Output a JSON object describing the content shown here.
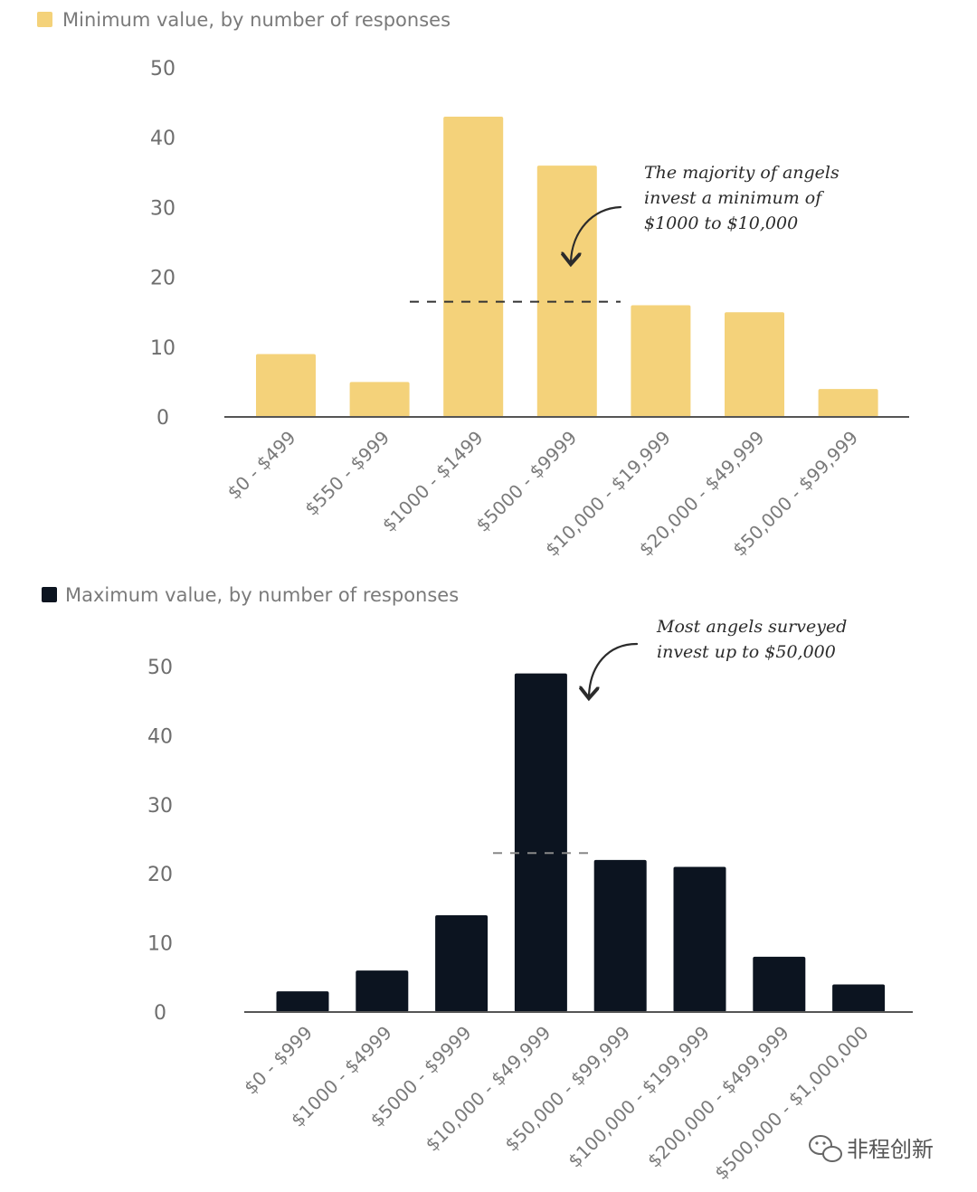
{
  "colors": {
    "min_bar": "#f4d27a",
    "max_bar": "#0c1420",
    "axis": "#555555",
    "text": "#7a7a7a"
  },
  "chart_data": [
    {
      "type": "bar",
      "legend": "Minimum value, by number of responses",
      "categories": [
        "$0 - $499",
        "$550 - $999",
        "$1000 - $1499",
        "$5000 - $9999",
        "$10,000 - $19,999",
        "$20,000 - $49,999",
        "$50,000 - $99,999"
      ],
      "values": [
        9,
        5,
        43,
        36,
        16,
        15,
        4
      ],
      "yticks": [
        0,
        10,
        20,
        30,
        40,
        50
      ],
      "ylim": [
        0,
        50
      ],
      "reference_line": 16.5,
      "annotation": [
        "The majority of angels",
        "invest a minimum of",
        "$1000 to $10,000"
      ]
    },
    {
      "type": "bar",
      "legend": "Maximum value, by number of responses",
      "categories": [
        "$0 - $999",
        "$1000 - $4999",
        "$5000 - $9999",
        "$10,000 - $49,999",
        "$50,000 - $99,999",
        "$100,000 - $199,999",
        "$200,000 - $499,999",
        "$500,000 - $1,000,000"
      ],
      "values": [
        3,
        6,
        14,
        49,
        22,
        21,
        8,
        4
      ],
      "yticks": [
        0,
        10,
        20,
        30,
        40,
        50
      ],
      "ylim": [
        0,
        50
      ],
      "reference_line": 23,
      "annotation": [
        "Most angels surveyed",
        "invest up to $50,000"
      ]
    }
  ],
  "watermark": {
    "icon": "wechat-icon",
    "text": "非程创新"
  }
}
